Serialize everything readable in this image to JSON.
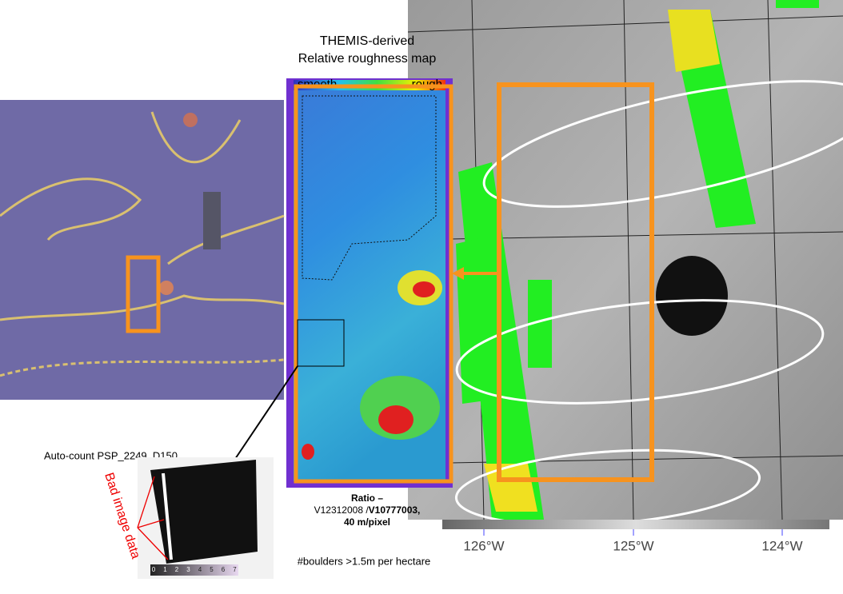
{
  "map_title": [
    "THEMIS-derived",
    "Relative roughness map"
  ],
  "legend": {
    "low": "smooth",
    "high": "rough"
  },
  "caption": {
    "line1": "Ratio –",
    "line2a": "V12312008 /",
    "line2b": "V10777003,",
    "line3": "40 m/pixel"
  },
  "boulder_label": "#boulders >1.5m per hectare",
  "inset_label": "Auto-count PSP_2249_D150",
  "bad_data_label": "Bad image data",
  "count_scale": [
    "0",
    "1",
    "2",
    "3",
    "4",
    "5",
    "6",
    "7"
  ],
  "longitudes": [
    "126°W",
    "125°W",
    "124°W"
  ]
}
